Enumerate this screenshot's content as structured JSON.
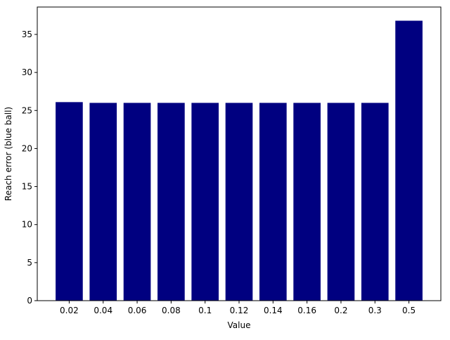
{
  "chart_data": {
    "type": "bar",
    "categories": [
      "0.02",
      "0.04",
      "0.06",
      "0.08",
      "0.1",
      "0.12",
      "0.14",
      "0.16",
      "0.2",
      "0.3",
      "0.5"
    ],
    "values": [
      26.1,
      26.0,
      26.0,
      26.0,
      26.0,
      26.0,
      26.0,
      26.0,
      26.0,
      26.0,
      36.8
    ],
    "title": "",
    "xlabel": "Value",
    "ylabel": "Reach error (blue ball)",
    "ylim": [
      0,
      38.6
    ],
    "yticks": [
      0,
      5,
      10,
      15,
      20,
      25,
      30,
      35
    ],
    "bar_color": "#000080",
    "grid": false,
    "legend": "none"
  }
}
